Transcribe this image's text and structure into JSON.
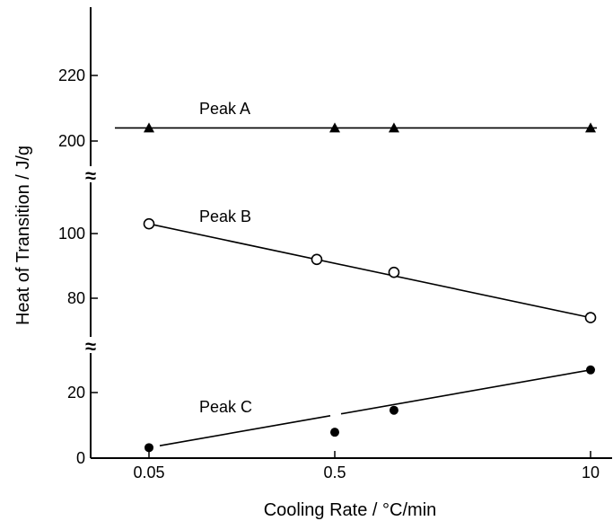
{
  "chart_data": {
    "type": "line",
    "xlabel": "Cooling Rate / °C/min",
    "ylabel": "Heat of Transition / J/g",
    "x_scale": "log",
    "x_ticks": [
      0.05,
      0.5,
      10
    ],
    "x_tick_labels": [
      "0.05",
      "0.5",
      "10"
    ],
    "y_segments": [
      {
        "range": [
          0,
          30
        ],
        "ticks": [
          0,
          20
        ],
        "tick_labels": [
          "0",
          "20"
        ]
      },
      {
        "range": [
          70,
          110
        ],
        "ticks": [
          80,
          100
        ],
        "tick_labels": [
          "80",
          "100"
        ]
      },
      {
        "range": [
          190,
          230
        ],
        "ticks": [
          200,
          220
        ],
        "tick_labels": [
          "200",
          "220"
        ]
      }
    ],
    "axis_break_marker": "≈",
    "series": [
      {
        "name": "Peak A",
        "marker": "filled-triangle",
        "x": [
          0.05,
          0.5,
          1,
          10
        ],
        "y": [
          204,
          204,
          204,
          204
        ]
      },
      {
        "name": "Peak B",
        "marker": "open-circle",
        "x": [
          0.05,
          0.4,
          1,
          10
        ],
        "y": [
          103,
          92,
          88,
          76
        ]
      },
      {
        "name": "Peak C",
        "marker": "filled-circle",
        "x": [
          0.05,
          0.5,
          1,
          10
        ],
        "y": [
          3.2,
          7.9,
          14.6,
          27
        ]
      }
    ],
    "grid": false,
    "legend": "none"
  }
}
